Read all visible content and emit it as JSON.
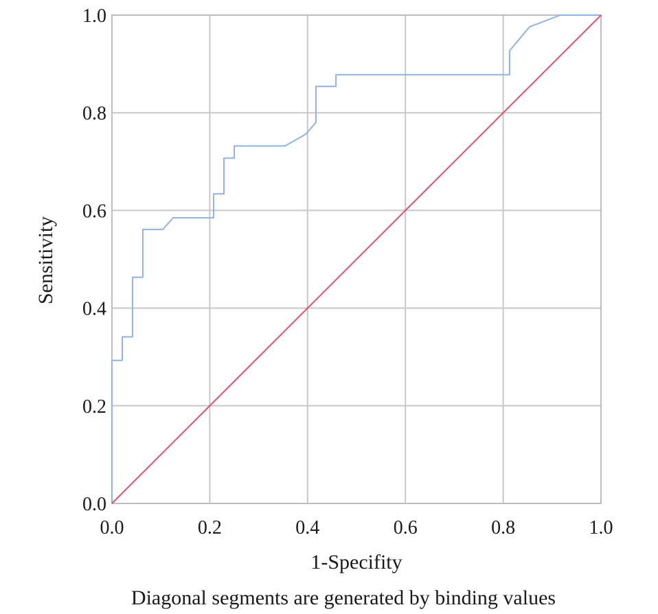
{
  "chart_data": {
    "type": "line",
    "xlabel": "1-Specifity",
    "ylabel": "Sensitivity",
    "caption": "Diagonal segments are generated by binding values",
    "xlim": [
      0.0,
      1.0
    ],
    "ylim": [
      0.0,
      1.0
    ],
    "x_ticks": [
      "0.0",
      "0.2",
      "0.4",
      "0.6",
      "0.8",
      "1.0"
    ],
    "y_ticks": [
      "0.0",
      "0.2",
      "0.4",
      "0.6",
      "0.8",
      "1.0"
    ],
    "grid": true,
    "series": [
      {
        "color": "#8fb3e3",
        "x": [
          0.0,
          0.0,
          0.021,
          0.021,
          0.042,
          0.042,
          0.063,
          0.063,
          0.104,
          0.125,
          0.208,
          0.208,
          0.229,
          0.229,
          0.25,
          0.25,
          0.354,
          0.396,
          0.417,
          0.417,
          0.458,
          0.458,
          0.813,
          0.813,
          0.854,
          0.917,
          1.0
        ],
        "y": [
          0.0,
          0.293,
          0.293,
          0.341,
          0.341,
          0.463,
          0.463,
          0.561,
          0.561,
          0.585,
          0.585,
          0.634,
          0.634,
          0.707,
          0.707,
          0.732,
          0.732,
          0.756,
          0.78,
          0.854,
          0.854,
          0.878,
          0.878,
          0.927,
          0.976,
          1.0,
          1.0
        ]
      },
      {
        "color": "#e2506a",
        "x": [
          0.0,
          1.0
        ],
        "y": [
          0.0,
          1.0
        ]
      }
    ]
  }
}
